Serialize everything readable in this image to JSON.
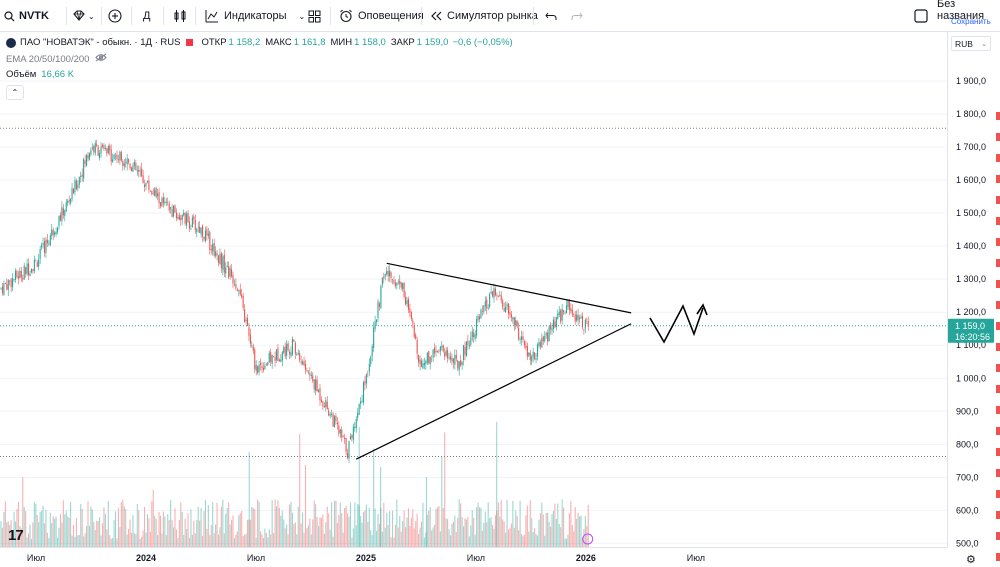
{
  "toolbar": {
    "symbol": "NVTK",
    "interval": "Д",
    "indicators_label": "Индикаторы",
    "alerts_label": "Оповещения",
    "replay_label": "Симулятор рынка",
    "layout_name": "Без названия",
    "save_status": "Сохранить"
  },
  "legend": {
    "title": "ПАО \"НОВАТЭК\" - обыкн. · 1Д · RUS",
    "open_label": "ОТКР",
    "open_value": "1 158,2",
    "high_label": "МАКС",
    "high_value": "1 161,8",
    "low_label": "МИН",
    "low_value": "1 158,0",
    "close_label": "ЗАКР",
    "close_value": "1 159,0",
    "change": "−0,6 (−0,05%)",
    "ema_label": "EMA 20/50/100/200",
    "volume_label": "Объём",
    "volume_value": "16,66 K"
  },
  "price_scale": {
    "currency": "RUB",
    "ticks": [
      "1 900,0",
      "1 800,0",
      "1 700,0",
      "1 600,0",
      "1 500,0",
      "1 400,0",
      "1 300,0",
      "1 200,0",
      "1 100,0",
      "1 000,0",
      "900,0",
      "800,0",
      "700,0",
      "600,0",
      "500,0"
    ],
    "current_price": "1 159,0",
    "countdown": "16:20:56"
  },
  "time_scale": {
    "ticks": [
      "Июл",
      "2024",
      "Июл",
      "2025",
      "Июл",
      "2026",
      "Июл"
    ]
  },
  "colors": {
    "up": "#26a69a",
    "down": "#ef5350",
    "accent": "#2962ff",
    "drawing": "#000000"
  },
  "chart_data": {
    "type": "candlestick",
    "title": "ПАО \"НОВАТЭК\" - обыкн. · 1Д · RUS",
    "currency": "RUB",
    "x": [
      "2023-05",
      "2023-07",
      "2023-09",
      "2023-10",
      "2023-12",
      "2024-02",
      "2024-04",
      "2024-06",
      "2024-07",
      "2024-09",
      "2024-11",
      "2024-12",
      "2025-01",
      "2025-02",
      "2025-03",
      "2025-04",
      "2025-05",
      "2025-06",
      "2025-07",
      "2025-08",
      "2025-09",
      "2025-10",
      "2025-11",
      "2025-12",
      "2026-01"
    ],
    "close": [
      1270,
      1350,
      1560,
      1700,
      1660,
      1520,
      1450,
      1280,
      1030,
      1100,
      900,
      780,
      1000,
      1320,
      1280,
      1040,
      1100,
      1040,
      1160,
      1260,
      1180,
      1050,
      1140,
      1220,
      1159
    ],
    "ylim": [
      480,
      1960
    ],
    "annotations": [
      {
        "type": "horizontal_line",
        "price": 1757
      },
      {
        "type": "horizontal_line",
        "price": 763
      },
      {
        "type": "trendline",
        "from": [
          "2024-12-15",
          755
        ],
        "to": [
          "2026-03-15",
          1165
        ]
      },
      {
        "type": "trendline",
        "from": [
          "2025-02-05",
          1348
        ],
        "to": [
          "2026-03-15",
          1198
        ]
      }
    ]
  }
}
